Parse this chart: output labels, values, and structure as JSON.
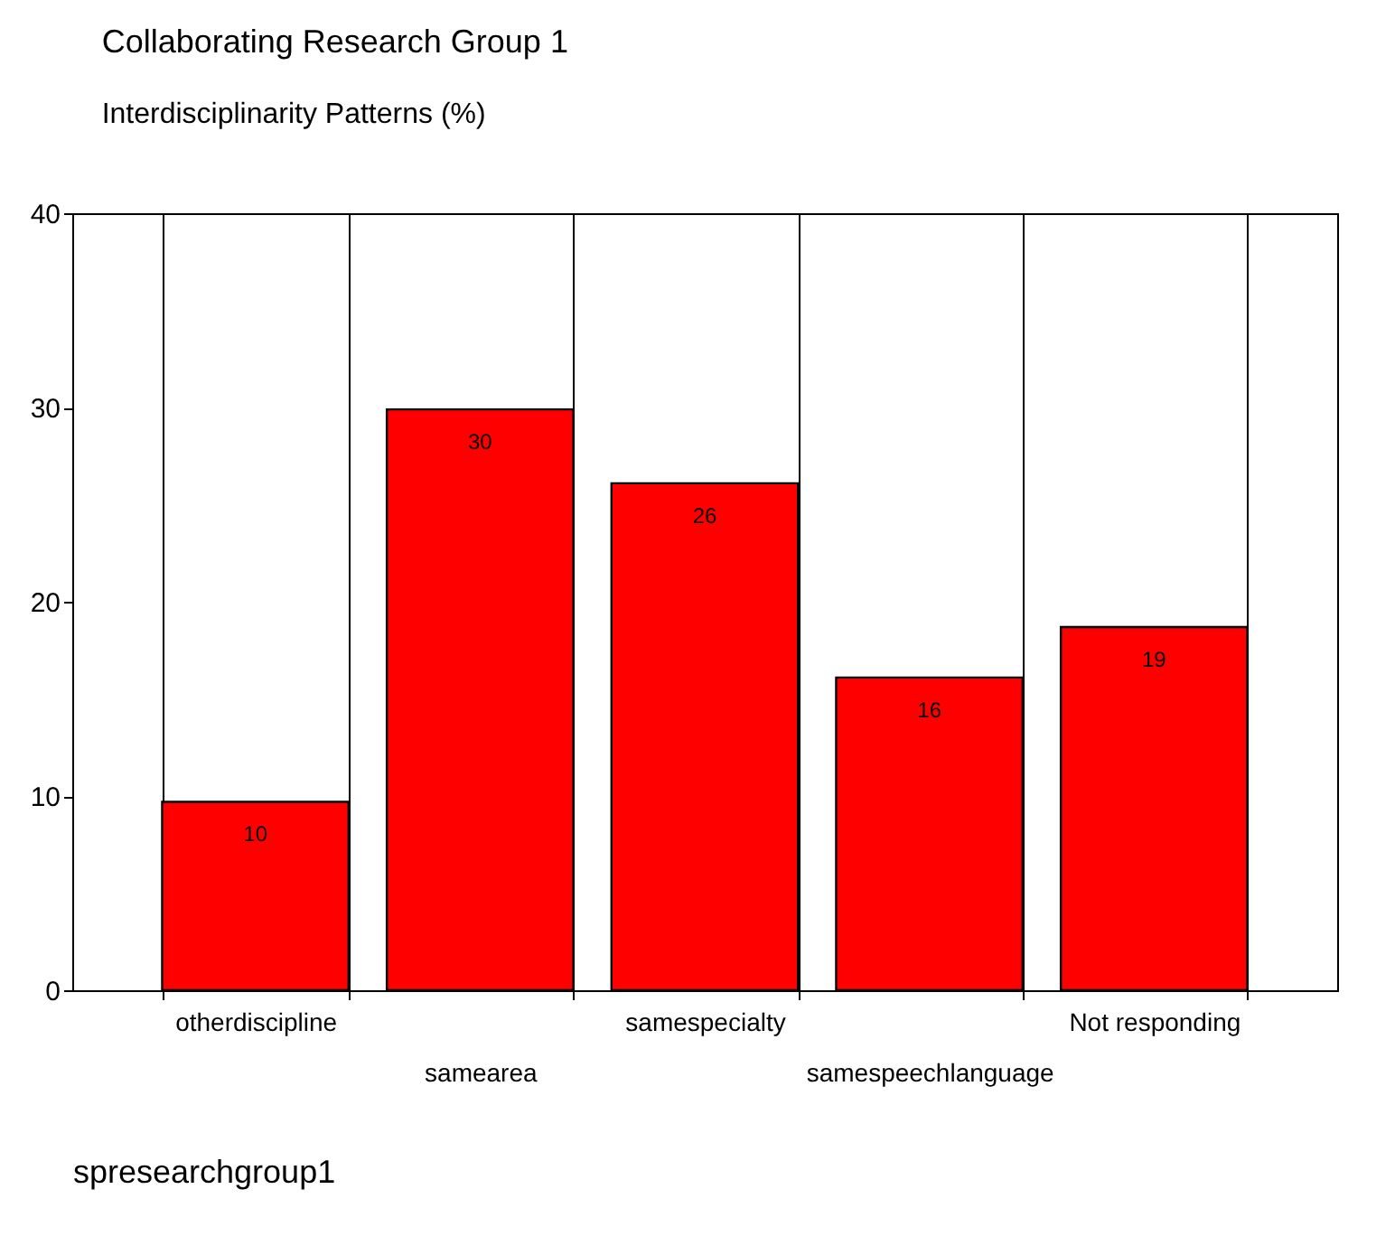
{
  "chart_data": {
    "type": "bar",
    "title": "Collaborating Research Group 1",
    "subtitle": "Interdisciplinarity Patterns (%)",
    "xlabel": "spresearchgroup1",
    "categories": [
      "otherdiscipline",
      "samearea",
      "samespecialty",
      "samespeechlanguage",
      "Not responding"
    ],
    "values": [
      9.7,
      29.9,
      26.1,
      16.1,
      18.7
    ],
    "value_labels": [
      "10",
      "30",
      "26",
      "16",
      "19"
    ],
    "color": "#ff0000",
    "ylim": [
      0,
      40
    ],
    "yticks": [
      0,
      10,
      20,
      30,
      40
    ],
    "grid": "x"
  }
}
